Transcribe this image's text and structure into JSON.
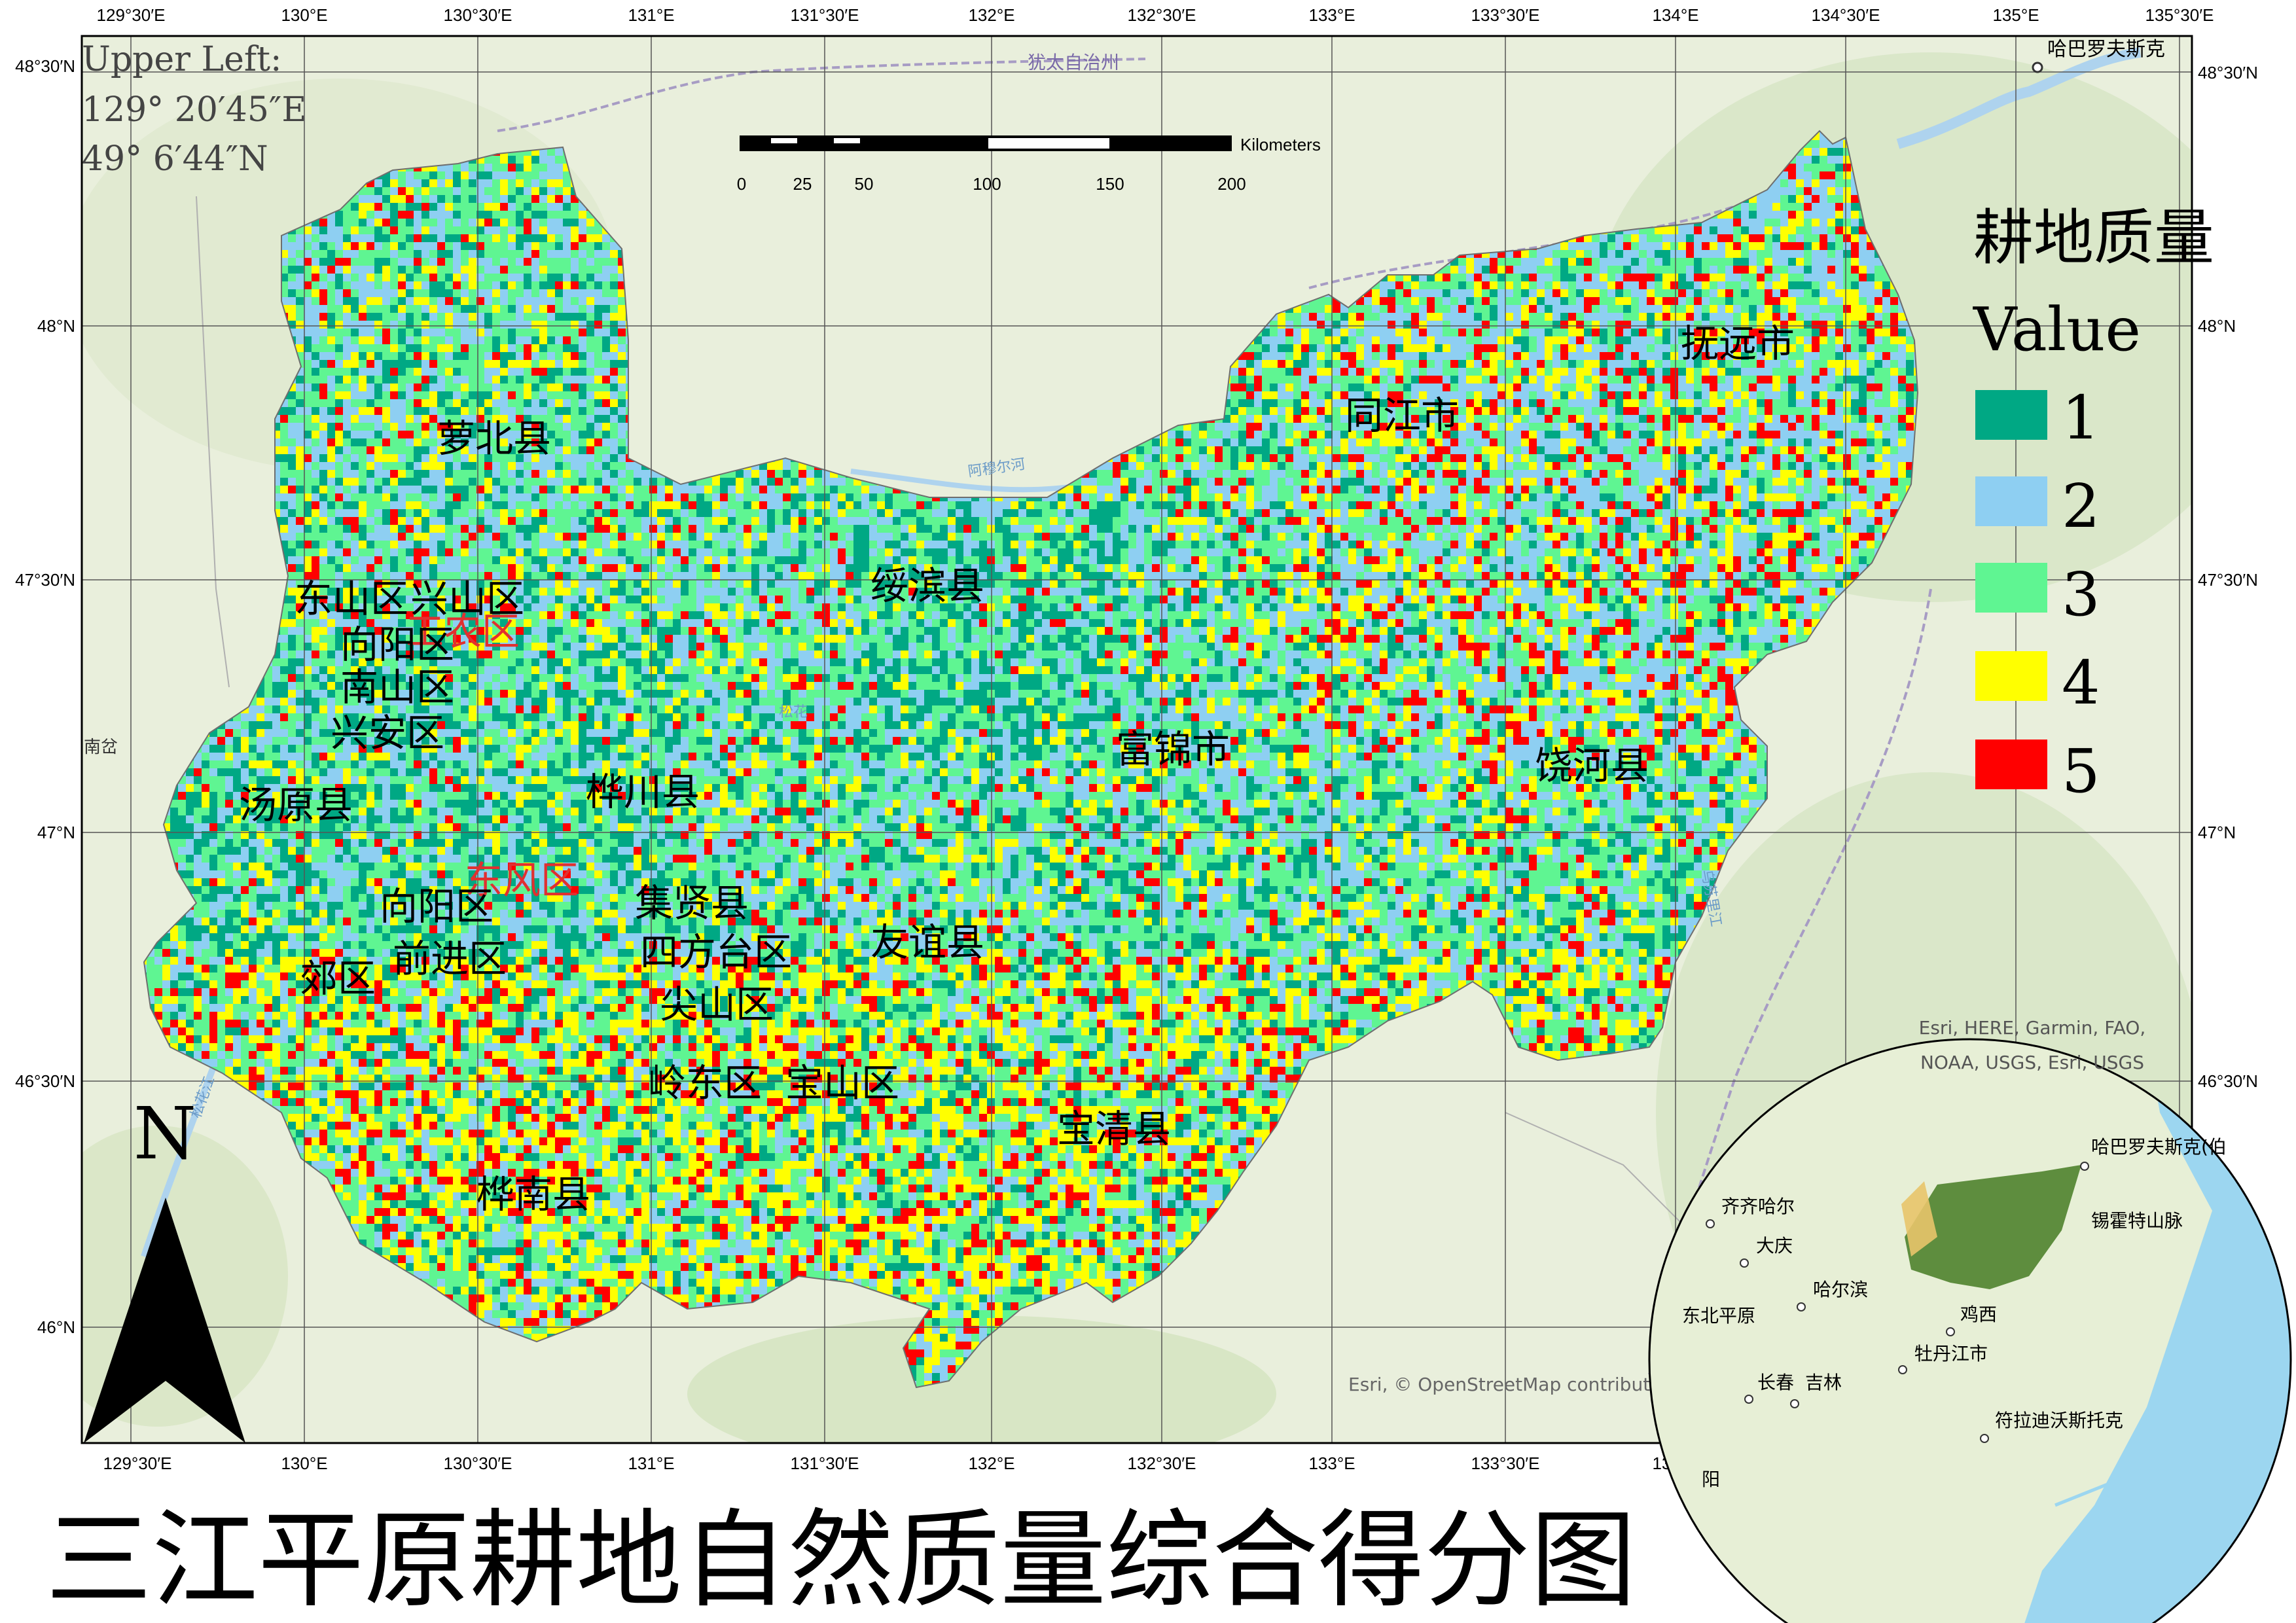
{
  "title": "三江平原耕地自然质量综合得分图",
  "coords_box": {
    "line1": "Upper Left:",
    "line2": "129° 20′45″E",
    "line3": "49° 6′44″N"
  },
  "scale_bar": {
    "unit": "Kilometers",
    "labels": [
      "0",
      "25",
      "50",
      "100",
      "150",
      "200"
    ]
  },
  "legend": {
    "title": "耕地质量",
    "subtitle": "Value",
    "items": [
      {
        "label": "1",
        "color": "#00a884"
      },
      {
        "label": "2",
        "color": "#8ecff2"
      },
      {
        "label": "3",
        "color": "#5ff592"
      },
      {
        "label": "4",
        "color": "#ffff00"
      },
      {
        "label": "5",
        "color": "#ff0000"
      }
    ]
  },
  "north_arrow": {
    "label": "N"
  },
  "graticule": {
    "lon_labels": [
      "129°30′E",
      "130°E",
      "130°30′E",
      "131°E",
      "131°30′E",
      "132°E",
      "132°30′E",
      "133°E",
      "133°30′E",
      "134°E",
      "134°30′E",
      "135°E",
      "135°30′E"
    ],
    "lat_labels": [
      "48°30′N",
      "48°N",
      "47°30′N",
      "47°N",
      "46°30′N",
      "46°N"
    ]
  },
  "counties": [
    {
      "name": "萝北县",
      "color": "#000000"
    },
    {
      "name": "同江市",
      "color": "#000000"
    },
    {
      "name": "抚远市",
      "color": "#000000"
    },
    {
      "name": "绥滨县",
      "color": "#000000"
    },
    {
      "name": "东山区",
      "color": "#000000"
    },
    {
      "name": "兴山区",
      "color": "#000000"
    },
    {
      "name": "工农区",
      "color": "#e03030"
    },
    {
      "name": "向阳区",
      "color": "#000000"
    },
    {
      "name": "南山区",
      "color": "#000000"
    },
    {
      "name": "兴安区",
      "color": "#000000"
    },
    {
      "name": "富锦市",
      "color": "#000000"
    },
    {
      "name": "饶河县",
      "color": "#000000"
    },
    {
      "name": "汤原县",
      "color": "#000000"
    },
    {
      "name": "桦川县",
      "color": "#000000"
    },
    {
      "name": "东风区",
      "color": "#e03030"
    },
    {
      "name": "向阳区",
      "color": "#000000"
    },
    {
      "name": "集贤县",
      "color": "#000000"
    },
    {
      "name": "前进区",
      "color": "#000000"
    },
    {
      "name": "郊区",
      "color": "#000000"
    },
    {
      "name": "四方台区",
      "color": "#000000"
    },
    {
      "name": "友谊县",
      "color": "#000000"
    },
    {
      "name": "尖山区",
      "color": "#000000"
    },
    {
      "name": "岭东区",
      "color": "#000000"
    },
    {
      "name": "宝山区",
      "color": "#000000"
    },
    {
      "name": "宝清县",
      "color": "#000000"
    },
    {
      "name": "桦南县",
      "color": "#000000"
    }
  ],
  "basemap_labels": {
    "jewish_ao": "犹太自治州",
    "khabarovsk": "哈巴罗夫斯克",
    "amur_river": "阿穆尔河",
    "songhua": "松花",
    "wusuli": "乌苏里江",
    "west_edge": "南岔",
    "songhua_sw": "松花江",
    "attribution": "Esri, © OpenStreetMap contributors"
  },
  "inset": {
    "attribution_line1": "Esri, HERE, Garmin, FAO,",
    "attribution_line2": "NOAA, USGS, Esri, USGS",
    "places": [
      "哈巴罗夫斯克(伯",
      "齐齐哈尔",
      "大庆",
      "锡霍特山脉",
      "哈尔滨",
      "东北平原",
      "鸡西",
      "牡丹江市",
      "长春",
      "吉林",
      "符拉迪沃斯托克",
      "阳"
    ]
  }
}
